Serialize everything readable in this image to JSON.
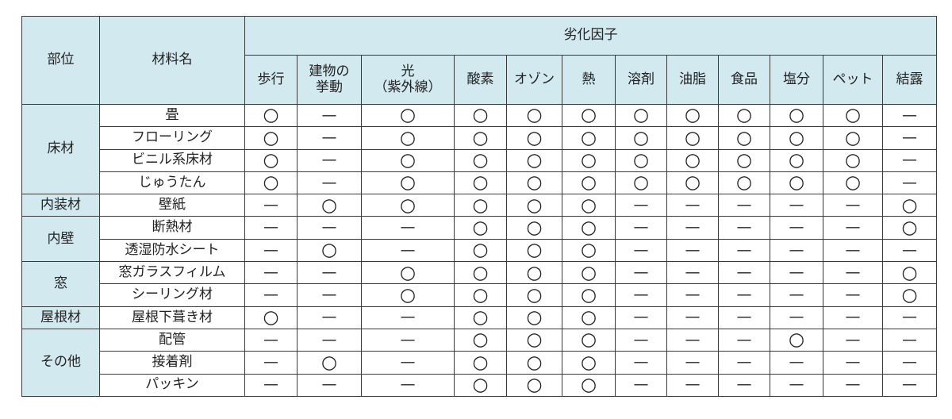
{
  "header": {
    "part": "部位",
    "material": "材料名",
    "factor_group": "劣化因子",
    "factors": [
      "歩行",
      "建物の\n挙動",
      "光\n（紫外線）",
      "酸素",
      "オゾン",
      "熱",
      "溶剤",
      "油脂",
      "食品",
      "塩分",
      "ペット",
      "結露"
    ]
  },
  "groups": [
    {
      "part": "床材",
      "rows": [
        {
          "material": "畳",
          "marks": [
            "○",
            "—",
            "○",
            "○",
            "○",
            "○",
            "○",
            "○",
            "○",
            "○",
            "○",
            "—"
          ]
        },
        {
          "material": "フローリング",
          "marks": [
            "○",
            "—",
            "○",
            "○",
            "○",
            "○",
            "○",
            "○",
            "○",
            "○",
            "○",
            "—"
          ]
        },
        {
          "material": "ビニル系床材",
          "marks": [
            "○",
            "—",
            "○",
            "○",
            "○",
            "○",
            "○",
            "○",
            "○",
            "○",
            "○",
            "—"
          ]
        },
        {
          "material": "じゅうたん",
          "marks": [
            "○",
            "—",
            "○",
            "○",
            "○",
            "○",
            "○",
            "○",
            "○",
            "○",
            "○",
            "—"
          ]
        }
      ]
    },
    {
      "part": "内装材",
      "rows": [
        {
          "material": "壁紙",
          "marks": [
            "—",
            "○",
            "○",
            "○",
            "○",
            "○",
            "—",
            "—",
            "—",
            "—",
            "—",
            "○"
          ]
        }
      ]
    },
    {
      "part": "内壁",
      "rows": [
        {
          "material": "断熱材",
          "marks": [
            "—",
            "—",
            "—",
            "○",
            "○",
            "○",
            "—",
            "—",
            "—",
            "—",
            "—",
            "○"
          ]
        },
        {
          "material": "透湿防水シート",
          "marks": [
            "—",
            "○",
            "—",
            "○",
            "○",
            "○",
            "—",
            "—",
            "—",
            "—",
            "—",
            "—"
          ]
        }
      ]
    },
    {
      "part": "窓",
      "rows": [
        {
          "material": "窓ガラスフィルム",
          "marks": [
            "—",
            "—",
            "○",
            "○",
            "○",
            "○",
            "—",
            "—",
            "—",
            "—",
            "—",
            "○"
          ]
        },
        {
          "material": "シーリング材",
          "marks": [
            "—",
            "—",
            "○",
            "○",
            "○",
            "○",
            "—",
            "—",
            "—",
            "—",
            "—",
            "○"
          ]
        }
      ]
    },
    {
      "part": "屋根材",
      "rows": [
        {
          "material": "屋根下葺き材",
          "marks": [
            "○",
            "—",
            "—",
            "○",
            "○",
            "○",
            "—",
            "—",
            "—",
            "—",
            "—",
            "—"
          ]
        }
      ]
    },
    {
      "part": "その他",
      "rows": [
        {
          "material": "配管",
          "marks": [
            "—",
            "—",
            "—",
            "○",
            "○",
            "○",
            "—",
            "—",
            "—",
            "○",
            "—",
            "—"
          ]
        },
        {
          "material": "接着剤",
          "marks": [
            "—",
            "○",
            "—",
            "○",
            "○",
            "○",
            "—",
            "—",
            "—",
            "—",
            "—",
            "—"
          ]
        },
        {
          "material": "パッキン",
          "marks": [
            "—",
            "—",
            "—",
            "○",
            "○",
            "○",
            "—",
            "—",
            "—",
            "—",
            "—",
            "—"
          ]
        }
      ]
    }
  ]
}
